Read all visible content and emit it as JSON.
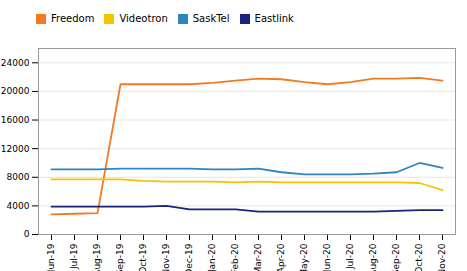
{
  "chart_data": {
    "type": "line",
    "categories": [
      "Jun-19",
      "Jul-19",
      "Aug-19",
      "Sep-19",
      "Oct-19",
      "Nov-19",
      "Dec-19",
      "Jan-20",
      "Feb-20",
      "Mar-20",
      "Apr-20",
      "May-20",
      "Jun-20",
      "Jul-20",
      "Aug-20",
      "Sep-20",
      "Oct-20",
      "Nov-20"
    ],
    "series": [
      {
        "name": "Freedom",
        "color": "#F47920",
        "values": [
          2800,
          2900,
          3000,
          21000,
          21000,
          21000,
          21000,
          21200,
          21500,
          21800,
          21700,
          21300,
          21000,
          21300,
          21800,
          21800,
          21900,
          21500
        ]
      },
      {
        "name": "Videotron",
        "color": "#F5C400",
        "values": [
          7700,
          7700,
          7700,
          7700,
          7500,
          7400,
          7400,
          7400,
          7300,
          7400,
          7300,
          7300,
          7300,
          7300,
          7300,
          7300,
          7200,
          6200
        ]
      },
      {
        "name": "SaskTel",
        "color": "#2E86C1",
        "values": [
          9100,
          9100,
          9100,
          9200,
          9200,
          9200,
          9200,
          9100,
          9100,
          9200,
          8700,
          8400,
          8400,
          8400,
          8500,
          8700,
          10000,
          9300
        ]
      },
      {
        "name": "Eastlink",
        "color": "#1A237E",
        "values": [
          3900,
          3900,
          3900,
          3900,
          3900,
          4000,
          3500,
          3500,
          3500,
          3200,
          3200,
          3200,
          3200,
          3200,
          3200,
          3300,
          3400,
          3400
        ]
      }
    ],
    "ylim": [
      0,
      26000
    ],
    "yticks": [
      0,
      4000,
      8000,
      12000,
      16000,
      20000,
      24000
    ],
    "grid": true,
    "legend": "top"
  }
}
